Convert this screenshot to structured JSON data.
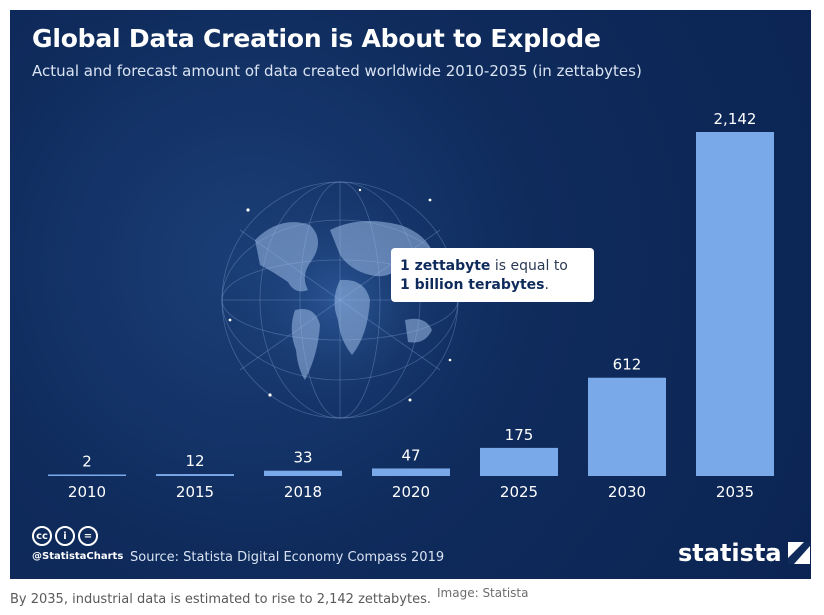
{
  "chart_data": {
    "type": "bar",
    "title": "Global Data Creation is About to Explode",
    "subtitle": "Actual and forecast amount of data created worldwide 2010-2035 (in zettabytes)",
    "categories": [
      "2010",
      "2015",
      "2018",
      "2020",
      "2025",
      "2030",
      "2035"
    ],
    "values": [
      2,
      12,
      33,
      47,
      175,
      612,
      2142
    ],
    "value_labels": [
      "2",
      "12",
      "33",
      "47",
      "175",
      "612",
      "2,142"
    ],
    "xlabel": "",
    "ylabel": "",
    "ylim": [
      0,
      2142
    ],
    "grid": false,
    "legend": "none",
    "annotation": {
      "part1_bold": "1 zettabyte",
      "part2": " is equal to",
      "part3_bold": "1 billion terabytes",
      "part4": "."
    },
    "colors": {
      "bar": "#7aa9ea",
      "background": "#0f2b5c"
    }
  },
  "footer": {
    "handle": "@StatistaCharts",
    "source": "Source: Statista Digital Economy Compass 2019",
    "brand": "statista",
    "license_icons": [
      "cc-icon",
      "by-icon",
      "nd-icon"
    ],
    "license_glyphs": [
      "cc",
      "i",
      "="
    ]
  },
  "page": {
    "caption": "By 2035, industrial data is estimated to rise to 2,142 zettabytes.",
    "image_credit": "Image: Statista"
  }
}
